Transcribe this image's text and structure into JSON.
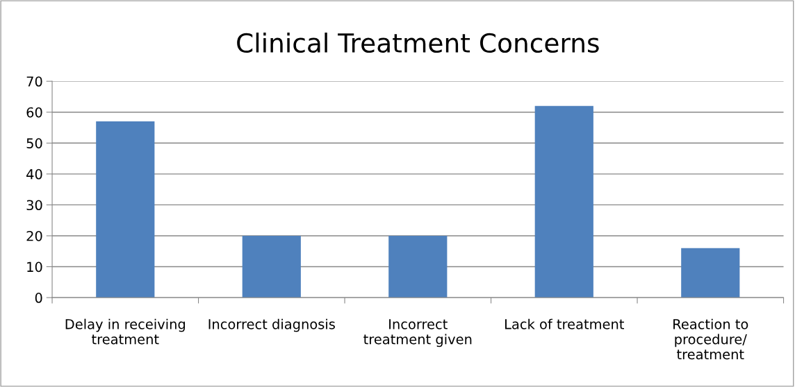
{
  "chart_data": {
    "type": "bar",
    "title": "Clinical Treatment Concerns",
    "categories": [
      "Delay in receiving\ntreatment",
      "Incorrect diagnosis",
      "Incorrect\ntreatment given",
      "Lack of treatment",
      "Reaction to\nprocedure/\ntreatment"
    ],
    "values": [
      57,
      20,
      20,
      62,
      16
    ],
    "color": "#4f81bd",
    "ylim": [
      0,
      70
    ],
    "yticks": [
      0,
      10,
      20,
      30,
      40,
      50,
      60,
      70
    ],
    "grid": "y",
    "legend": false
  }
}
